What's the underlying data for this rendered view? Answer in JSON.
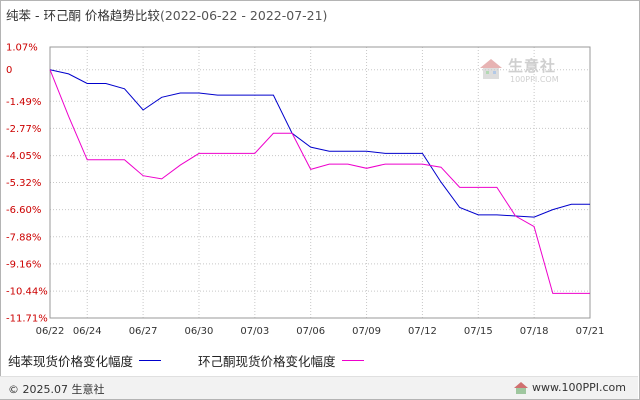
{
  "title": {
    "text": "纯苯 - 环己酮 价格趋势比较",
    "range": "(2022-06-22 - 2022-07-21)"
  },
  "watermark": {
    "brand": "生意社",
    "url": "100PPI.COM"
  },
  "footer": {
    "copyright": "© 2025.07 生意社",
    "site": "www.100PPI.com"
  },
  "colors": {
    "series1": "#0000cc",
    "series2": "#ee00cc",
    "ytick": "#cc0000",
    "grid": "#c8c8c8"
  },
  "chart_data": {
    "type": "line",
    "x": [
      "06/22",
      "06/23",
      "06/24",
      "06/27",
      "06/28",
      "06/29",
      "06/30",
      "07/01",
      "07/04",
      "07/05",
      "07/06",
      "07/07",
      "07/08",
      "07/11",
      "07/12",
      "07/13",
      "07/14",
      "07/15",
      "07/18",
      "07/19",
      "07/20",
      "07/21"
    ],
    "x_tick_labels": [
      "06/22",
      "06/24",
      "06/27",
      "06/30",
      "07/03",
      "07/06",
      "07/09",
      "07/12",
      "07/15",
      "07/18",
      "07/21"
    ],
    "y_tick_labels": [
      "1.07%",
      "0",
      "-1.49%",
      "-2.77%",
      "-4.05%",
      "-5.32%",
      "-6.60%",
      "-7.88%",
      "-9.16%",
      "-10.44%",
      "-11.71%"
    ],
    "ylim": [
      -11.71,
      1.07
    ],
    "y_unit": "%",
    "grid": true,
    "legend_position": "bottom",
    "series": [
      {
        "name": "纯苯现货价格变化幅度",
        "color": "#0000cc",
        "points": [
          [
            "06/22",
            0
          ],
          [
            "06/23",
            -0.2
          ],
          [
            "06/24",
            -0.65
          ],
          [
            "06/25",
            -0.65
          ],
          [
            "06/26",
            -0.9
          ],
          [
            "06/27",
            -1.9
          ],
          [
            "06/28",
            -1.3
          ],
          [
            "06/29",
            -1.1
          ],
          [
            "06/30",
            -1.1
          ],
          [
            "07/01",
            -1.2
          ],
          [
            "07/02",
            -1.2
          ],
          [
            "07/03",
            -1.2
          ],
          [
            "07/04",
            -1.2
          ],
          [
            "07/05",
            -3.0
          ],
          [
            "07/06",
            -3.65
          ],
          [
            "07/07",
            -3.85
          ],
          [
            "07/08",
            -3.85
          ],
          [
            "07/09",
            -3.85
          ],
          [
            "07/10",
            -3.95
          ],
          [
            "07/11",
            -3.95
          ],
          [
            "07/12",
            -3.95
          ],
          [
            "07/13",
            -5.3
          ],
          [
            "07/14",
            -6.5
          ],
          [
            "07/15",
            -6.85
          ],
          [
            "07/16",
            -6.85
          ],
          [
            "07/17",
            -6.9
          ],
          [
            "07/18",
            -6.95
          ],
          [
            "07/19",
            -6.6
          ],
          [
            "07/20",
            -6.35
          ],
          [
            "07/21",
            -6.35
          ]
        ]
      },
      {
        "name": "环己酮现货价格变化幅度",
        "color": "#ee00cc",
        "points": [
          [
            "06/22",
            0
          ],
          [
            "06/23",
            -2.2
          ],
          [
            "06/24",
            -4.25
          ],
          [
            "06/25",
            -4.25
          ],
          [
            "06/26",
            -4.25
          ],
          [
            "06/27",
            -5.0
          ],
          [
            "06/28",
            -5.15
          ],
          [
            "06/29",
            -4.5
          ],
          [
            "06/30",
            -3.95
          ],
          [
            "07/01",
            -3.95
          ],
          [
            "07/02",
            -3.95
          ],
          [
            "07/03",
            -3.95
          ],
          [
            "07/04",
            -3.0
          ],
          [
            "07/05",
            -3.0
          ],
          [
            "07/06",
            -4.7
          ],
          [
            "07/07",
            -4.45
          ],
          [
            "07/08",
            -4.45
          ],
          [
            "07/09",
            -4.65
          ],
          [
            "07/10",
            -4.45
          ],
          [
            "07/11",
            -4.45
          ],
          [
            "07/12",
            -4.45
          ],
          [
            "07/13",
            -4.6
          ],
          [
            "07/14",
            -5.55
          ],
          [
            "07/15",
            -5.55
          ],
          [
            "07/16",
            -5.55
          ],
          [
            "07/17",
            -6.9
          ],
          [
            "07/18",
            -7.4
          ],
          [
            "07/19",
            -10.55
          ],
          [
            "07/20",
            -10.55
          ],
          [
            "07/21",
            -10.55
          ]
        ]
      }
    ]
  }
}
